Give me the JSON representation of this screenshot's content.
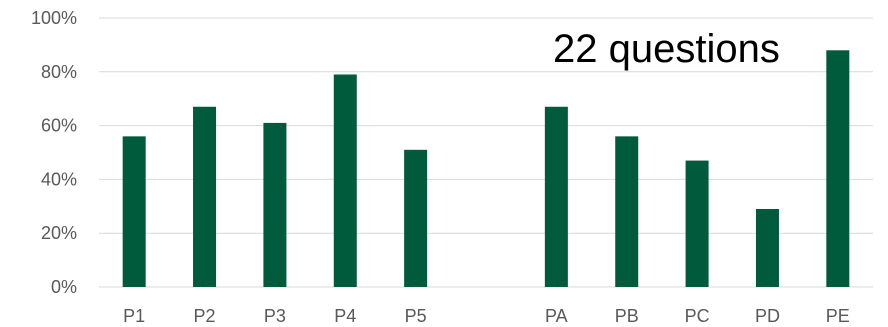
{
  "chart_data": {
    "type": "bar",
    "categories": [
      "P1",
      "P2",
      "P3",
      "P4",
      "P5",
      "",
      "PA",
      "PB",
      "PC",
      "PD",
      "PE"
    ],
    "values": [
      56,
      67,
      61,
      79,
      51,
      null,
      67,
      56,
      47,
      29,
      88
    ],
    "ylim": [
      0,
      100
    ],
    "yticks": [
      "0%",
      "20%",
      "40%",
      "60%",
      "80%",
      "100%"
    ],
    "annotation": "22 questions",
    "grid": true,
    "legend": "none",
    "colors": {
      "bar": "#005a3c",
      "grid": "#d9d9d9",
      "axis_text": "#595959",
      "annotation": "#000000"
    }
  }
}
